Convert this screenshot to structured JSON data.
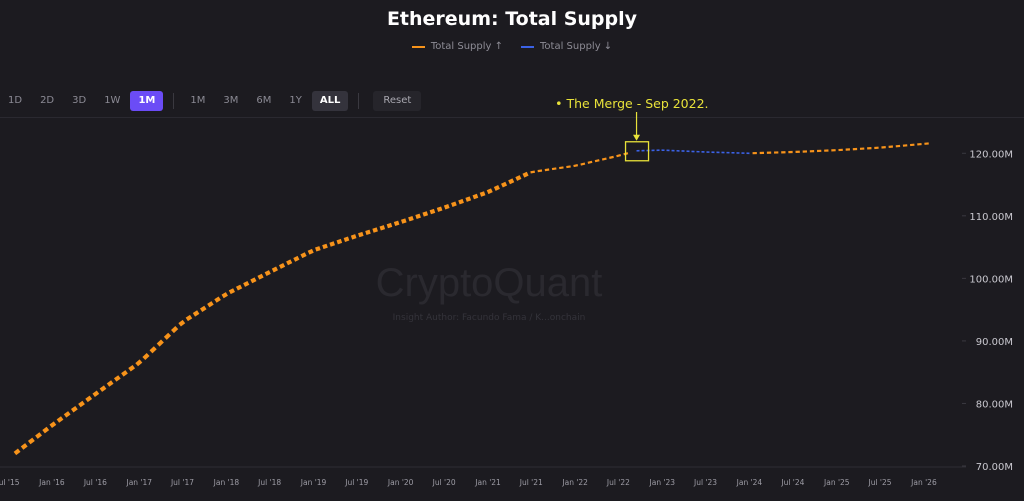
{
  "toolbar": {
    "intervals": [
      "1D",
      "2D",
      "3D",
      "1W",
      "1M"
    ],
    "active_interval": "1M",
    "ranges": [
      "1M",
      "3M",
      "6M",
      "1Y",
      "ALL"
    ],
    "active_range": "ALL",
    "reset_label": "Reset"
  },
  "watermark": {
    "brand": "CryptoQuant",
    "author": "Insight Author: Facundo Fama / K...onchain"
  },
  "colors": {
    "background": "#1c1b20",
    "series_up": "#f7931a",
    "series_down": "#3b62e6",
    "annotation": "#e8e23a",
    "active_interval": "#6b4cf6"
  },
  "chart_data": {
    "type": "line",
    "title": "Ethereum: Total Supply",
    "legend": [
      "Total Supply ↑",
      "Total Supply ↓"
    ],
    "legend_position": "top-center",
    "y_axis_position": "right",
    "ylim": [
      70000000,
      125000000
    ],
    "yticks": [
      70000000,
      80000000,
      90000000,
      100000000,
      110000000,
      120000000
    ],
    "ytick_labels": [
      "70.00M",
      "80.00M",
      "90.00M",
      "100.00M",
      "110.00M",
      "120.00M"
    ],
    "xlim": [
      "2015-07-01",
      "2026-06-01"
    ],
    "xtick_labels": [
      "Jul '15",
      "Jan '16",
      "Jul '16",
      "Jan '17",
      "Jul '17",
      "Jan '18",
      "Jul '18",
      "Jan '19",
      "Jul '19",
      "Jan '20",
      "Jul '20",
      "Jan '21",
      "Jul '21",
      "Jan '22",
      "Jul '22",
      "Jan '23",
      "Jul '23",
      "Jan '24",
      "Jul '24",
      "Jan '25",
      "Jul '25",
      "Jan '26"
    ],
    "xtick_dates": [
      "2015-07-01",
      "2016-01-01",
      "2016-07-01",
      "2017-01-01",
      "2017-07-01",
      "2018-01-01",
      "2018-07-01",
      "2019-01-01",
      "2019-07-01",
      "2020-01-01",
      "2020-07-01",
      "2021-01-01",
      "2021-07-01",
      "2022-01-01",
      "2022-07-01",
      "2023-01-01",
      "2023-07-01",
      "2024-01-01",
      "2024-07-01",
      "2025-01-01",
      "2025-07-01",
      "2026-01-01"
    ],
    "grid": false,
    "series": [
      {
        "name": "Total Supply ↑",
        "color": "#f7931a",
        "x": [
          "2015-07-30",
          "2016-01-01",
          "2016-07-01",
          "2017-01-01",
          "2017-07-01",
          "2018-01-01",
          "2018-07-01",
          "2019-01-01",
          "2019-07-01",
          "2020-01-01",
          "2020-07-01",
          "2021-01-01",
          "2021-07-01",
          "2022-01-01",
          "2022-07-01",
          "2022-09-15",
          "2023-01-01",
          "2023-07-01",
          "2024-01-01",
          "2024-07-01",
          "2025-01-01",
          "2025-07-01",
          "2026-03-01"
        ],
        "values": [
          72000000,
          76500000,
          81500000,
          86500000,
          93000000,
          97500000,
          101000000,
          104500000,
          106800000,
          109000000,
          111300000,
          113800000,
          117000000,
          118000000,
          119600000,
          120400000,
          null,
          null,
          120000000,
          120200000,
          120500000,
          120900000,
          121700000
        ]
      },
      {
        "name": "Total Supply ↓",
        "color": "#3b62e6",
        "x": [
          "2022-09-15",
          "2023-01-01",
          "2023-07-01",
          "2024-01-01"
        ],
        "values": [
          120400000,
          120500000,
          120200000,
          120000000
        ]
      }
    ],
    "annotation": {
      "text": "• The Merge - Sep 2022.",
      "x": "2022-09-15",
      "y": 120400000,
      "color": "#e8e23a"
    }
  }
}
